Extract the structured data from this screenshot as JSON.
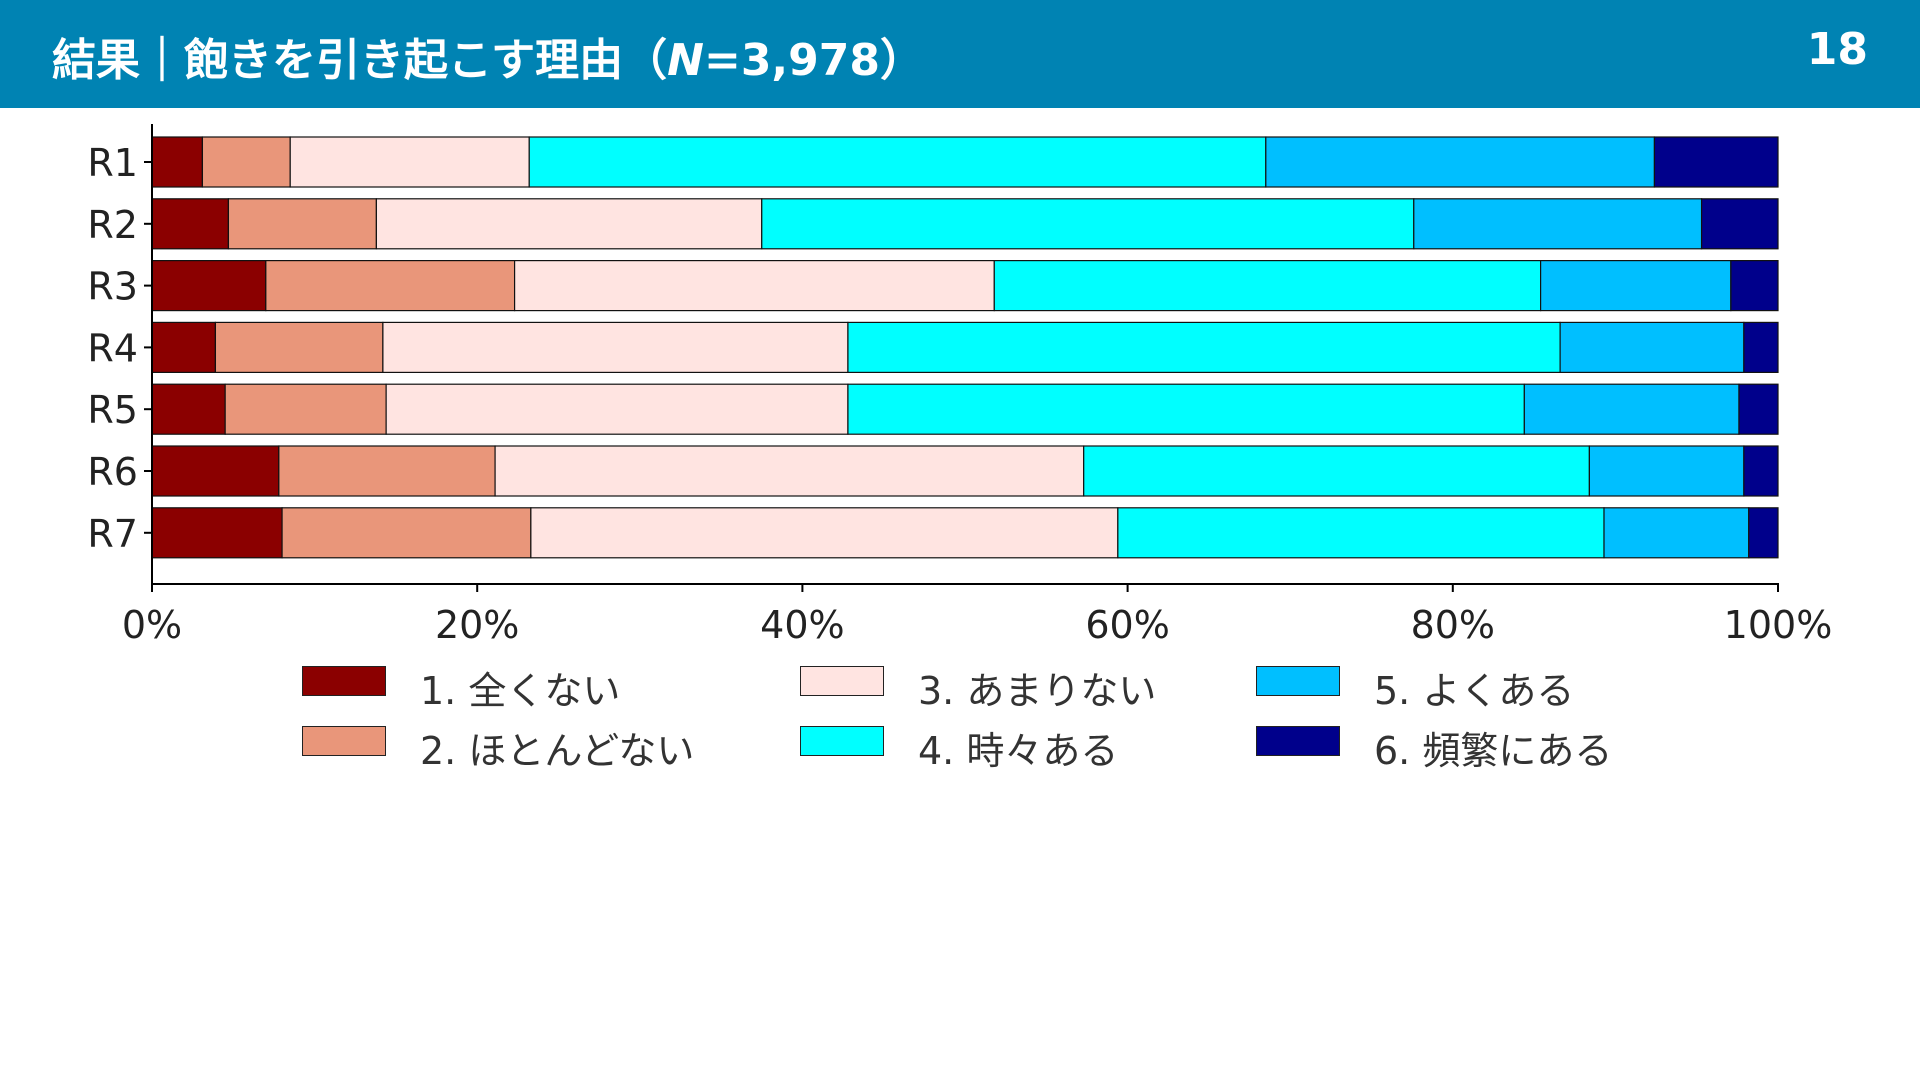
{
  "header": {
    "title_prefix": "結果｜飽きを引き起こす理由（",
    "title_n": "N",
    "title_suffix": "=3,978）",
    "page_number": "18",
    "background": "#0083b3"
  },
  "chart_data": {
    "type": "bar",
    "orientation": "horizontal",
    "stacked": true,
    "normalized_percent": true,
    "categories": [
      "R1",
      "R2",
      "R3",
      "R4",
      "R5",
      "R6",
      "R7"
    ],
    "series": [
      {
        "name": "1. 全くない",
        "color": "#8b0000",
        "values": [
          3.1,
          4.7,
          7.0,
          3.9,
          4.5,
          7.8,
          8.0
        ]
      },
      {
        "name": "2. ほとんどない",
        "color": "#e9967a",
        "values": [
          5.4,
          9.1,
          15.3,
          10.3,
          9.9,
          13.3,
          15.3
        ]
      },
      {
        "name": "3. あまりない",
        "color": "#ffe4e1",
        "values": [
          14.7,
          23.7,
          29.5,
          28.6,
          28.4,
          36.2,
          36.1
        ]
      },
      {
        "name": "4. 時々ある",
        "color": "#00ffff",
        "values": [
          45.3,
          40.1,
          33.6,
          43.8,
          41.6,
          31.1,
          29.9
        ]
      },
      {
        "name": "5. よくある",
        "color": "#00bfff",
        "values": [
          23.9,
          17.7,
          11.7,
          11.3,
          13.2,
          9.5,
          8.9
        ]
      },
      {
        "name": "6. 頻繁にある",
        "color": "#00008b",
        "values": [
          7.6,
          4.7,
          2.9,
          2.1,
          2.4,
          2.1,
          1.8
        ]
      }
    ],
    "xlim": [
      0,
      100
    ],
    "xticks": [
      "0%",
      "20%",
      "40%",
      "60%",
      "80%",
      "100%"
    ],
    "xlabel": "",
    "ylabel": "",
    "grid": false,
    "legend_position": "bottom",
    "legend_columns": 3
  }
}
